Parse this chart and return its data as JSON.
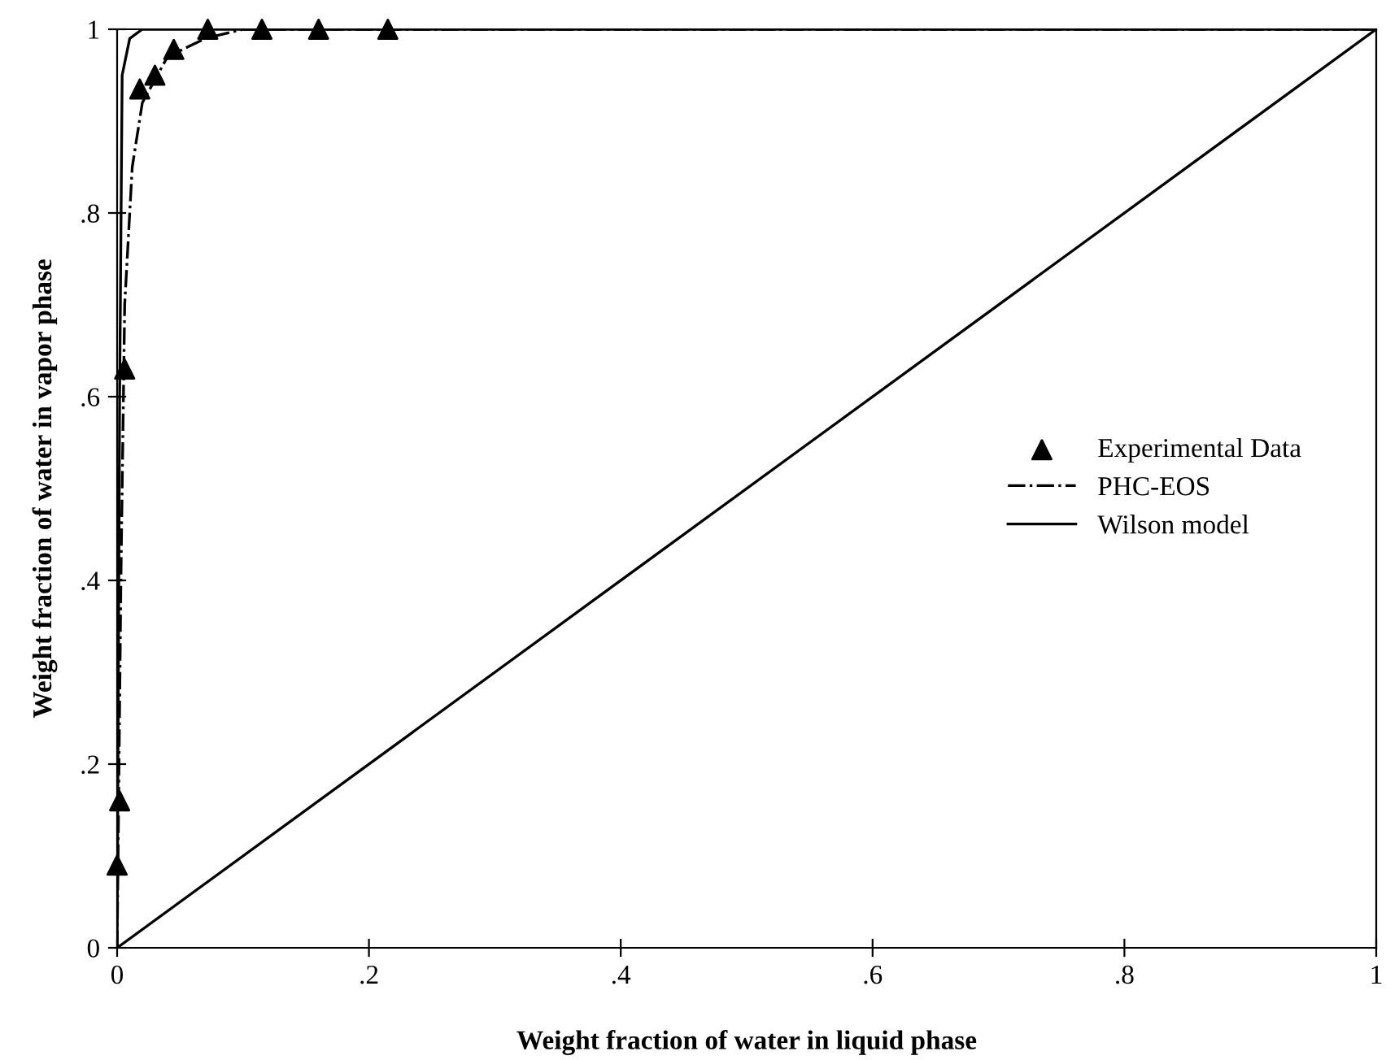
{
  "chart_data": {
    "type": "line",
    "xlabel": "Weight fraction of water in liquid phase",
    "ylabel": "Weight fraction of water in vapor phase",
    "xlim": [
      0,
      1
    ],
    "ylim": [
      0,
      1
    ],
    "xticks": [
      0,
      {
        "value": 0.2,
        "label": ".2"
      },
      {
        "value": 0.4,
        "label": ".4"
      },
      {
        "value": 0.6,
        "label": ".6"
      },
      {
        "value": 0.8,
        "label": ".8"
      },
      1
    ],
    "yticks": [
      0,
      {
        "value": 0.2,
        "label": ".2"
      },
      {
        "value": 0.4,
        "label": ".4"
      },
      {
        "value": 0.6,
        "label": ".6"
      },
      {
        "value": 0.8,
        "label": ".8"
      },
      1
    ],
    "grid": false,
    "legend": "right",
    "series": [
      {
        "name": "Experimental Data",
        "type": "scatter",
        "marker": "triangle",
        "color": "#000000",
        "x": [
          0.0,
          0.002,
          0.006,
          0.018,
          0.03,
          0.045,
          0.072,
          0.115,
          0.16,
          0.215
        ],
        "values": [
          0.09,
          0.16,
          0.63,
          0.935,
          0.95,
          0.978,
          1.0,
          1.0,
          1.0,
          1.0
        ]
      },
      {
        "name": "PHC-EOS",
        "line_style": "dashdot",
        "color": "#000000",
        "x": [
          0,
          0.003,
          0.006,
          0.012,
          0.02,
          0.04,
          0.07,
          0.1,
          1
        ],
        "values": [
          0,
          0.4,
          0.7,
          0.85,
          0.92,
          0.97,
          0.99,
          1,
          1
        ]
      },
      {
        "name": "Wilson model",
        "line_style": "solid",
        "color": "#000000",
        "x": [
          0,
          0.002,
          0.004,
          0.01,
          0.02,
          1
        ],
        "values": [
          0,
          0.6,
          0.95,
          0.99,
          1,
          1
        ]
      },
      {
        "line_style": "solid",
        "color": "#000000",
        "x": [
          0,
          1
        ],
        "values": [
          0,
          1
        ]
      }
    ]
  }
}
